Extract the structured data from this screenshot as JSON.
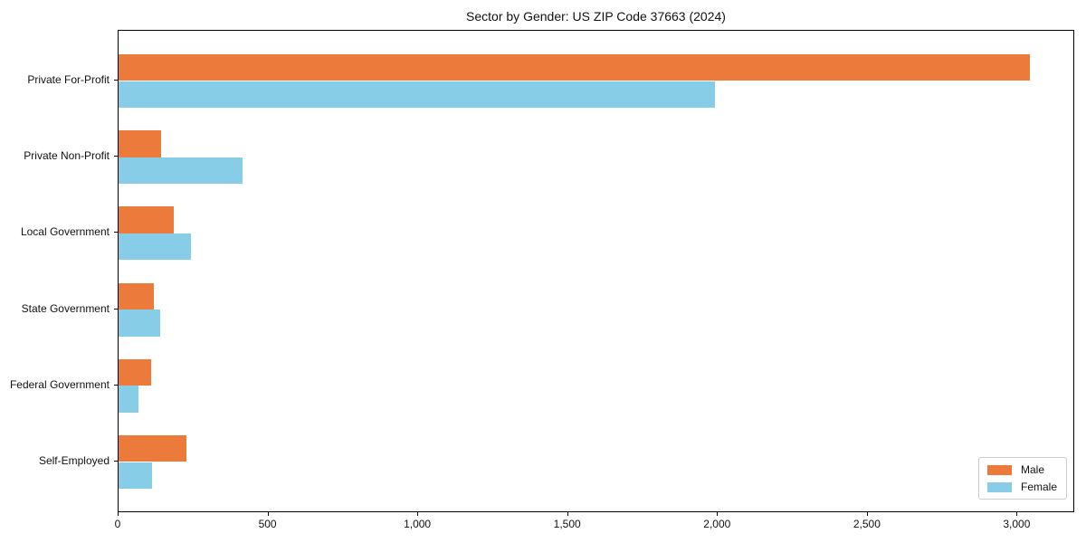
{
  "title": "Sector by Gender: US ZIP Code 37663 (2024)",
  "chart_data": {
    "type": "bar",
    "orientation": "horizontal",
    "title": "Sector by Gender: US ZIP Code 37663 (2024)",
    "categories": [
      "Private For-Profit",
      "Private Non-Profit",
      "Local Government",
      "State Government",
      "Federal Government",
      "Self-Employed"
    ],
    "series": [
      {
        "name": "Male",
        "color": "#EC7A3A",
        "values": [
          3040,
          142,
          183,
          118,
          108,
          227
        ]
      },
      {
        "name": "Female",
        "color": "#87CDE8",
        "values": [
          1990,
          414,
          242,
          139,
          66,
          113
        ]
      }
    ],
    "xlabel": "",
    "ylabel": "",
    "xlim": [
      0,
      3192
    ],
    "x_ticks": [
      0,
      500,
      1000,
      1500,
      2000,
      2500,
      3000
    ],
    "x_tick_labels": [
      "0",
      "500",
      "1,000",
      "1,500",
      "2,000",
      "2,500",
      "3,000"
    ],
    "grid": false,
    "legend_position": "lower right"
  }
}
